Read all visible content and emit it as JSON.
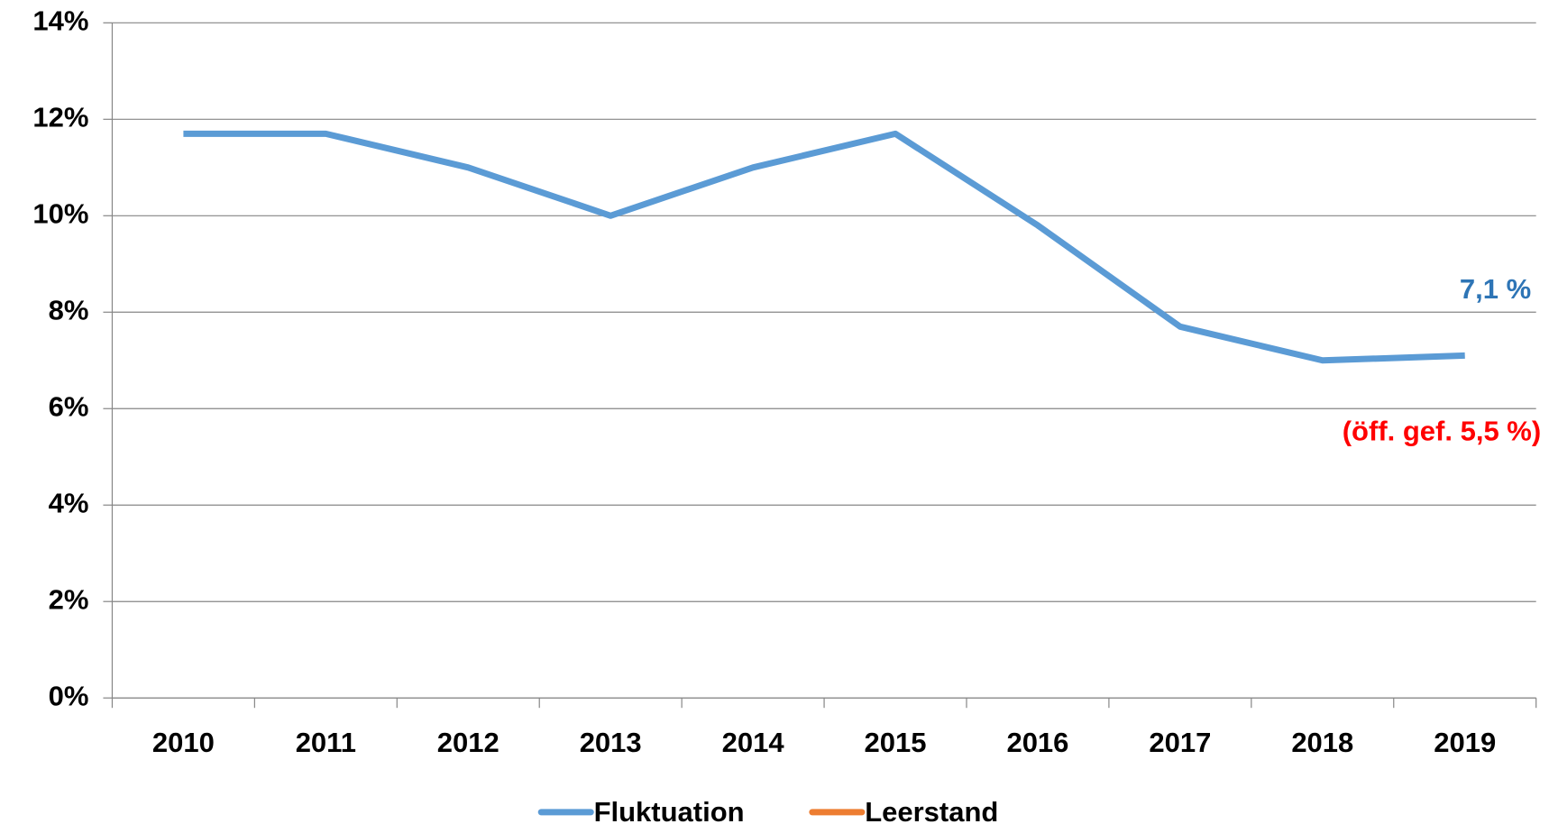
{
  "chart_data": {
    "type": "line",
    "categories": [
      "2010",
      "2011",
      "2012",
      "2013",
      "2014",
      "2015",
      "2016",
      "2017",
      "2018",
      "2019"
    ],
    "series": [
      {
        "name": "Fluktuation",
        "color": "#5b9bd5",
        "values": [
          11.7,
          11.7,
          11.0,
          10.0,
          11.0,
          11.7,
          9.8,
          7.7,
          7.0,
          7.1
        ],
        "value_labels": [
          null,
          null,
          null,
          null,
          null,
          null,
          null,
          null,
          null,
          "7,1 %"
        ],
        "label_color": "#2e75b6"
      },
      {
        "name": "Leerstand",
        "color": "#ed7d31",
        "values": [
          null,
          null,
          null,
          null,
          null,
          null,
          null,
          null,
          null,
          null
        ]
      }
    ],
    "annotations": [
      {
        "text": "(öff. gef. 5,5 %)",
        "color": "#ff0000"
      }
    ],
    "ylim": [
      0,
      14
    ],
    "yticks": [
      {
        "value": 0,
        "label": "0%"
      },
      {
        "value": 2,
        "label": "2%"
      },
      {
        "value": 4,
        "label": "4%"
      },
      {
        "value": 6,
        "label": "6%"
      },
      {
        "value": 8,
        "label": "8%"
      },
      {
        "value": 10,
        "label": "10%"
      },
      {
        "value": 12,
        "label": "12%"
      },
      {
        "value": 14,
        "label": "14%"
      }
    ],
    "grid": true,
    "legend": "bottom"
  }
}
